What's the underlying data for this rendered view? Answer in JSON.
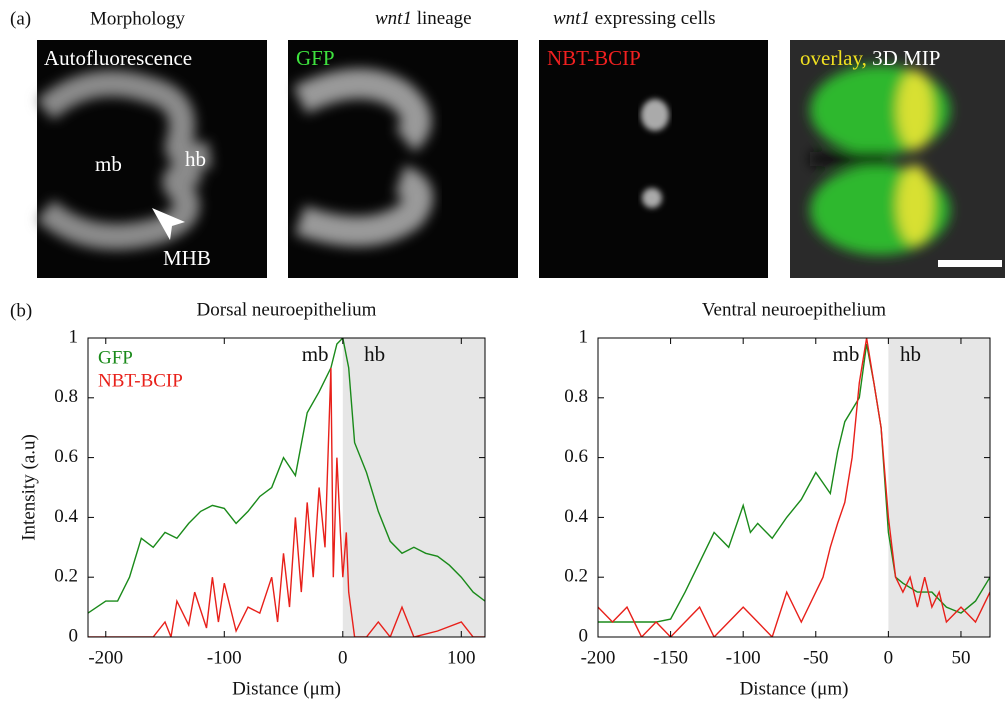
{
  "figure": {
    "label_a": "(a)",
    "label_b": "(b)",
    "panels": [
      {
        "header": "Morphology",
        "caption": "Autofluorescence",
        "marks": [
          "mb",
          "hb",
          "MHB"
        ]
      },
      {
        "header_italic": "wnt1",
        "header": " lineage",
        "caption": "GFP"
      },
      {
        "header_italic": "wnt1",
        "header": " expressing cells",
        "caption": "NBT-BCIP"
      },
      {
        "caption": "overlay,",
        "caption2": " 3D MIP"
      }
    ]
  },
  "chart_data": [
    {
      "type": "line",
      "title": "Dorsal neuroepithelium",
      "x_label": "Distance (μm)",
      "y_label": "Intensity (a.u)",
      "xlim": [
        -215,
        120
      ],
      "ylim": [
        0,
        1
      ],
      "xticks": [
        -200,
        -100,
        0,
        100
      ],
      "yticks": [
        0,
        0.2,
        0.4,
        0.6,
        0.8,
        1
      ],
      "shaded_region": [
        0,
        120
      ],
      "annotations": [
        "mb",
        "hb"
      ],
      "legend": "upper left",
      "series": [
        {
          "name": "GFP",
          "color": "#1a8a1a",
          "x": [
            -215,
            -200,
            -190,
            -180,
            -170,
            -160,
            -150,
            -140,
            -130,
            -120,
            -110,
            -100,
            -90,
            -80,
            -70,
            -60,
            -50,
            -40,
            -30,
            -20,
            -10,
            -5,
            0,
            5,
            10,
            20,
            30,
            40,
            50,
            60,
            70,
            80,
            90,
            100,
            110,
            120
          ],
          "values": [
            0.08,
            0.12,
            0.12,
            0.2,
            0.33,
            0.3,
            0.35,
            0.33,
            0.38,
            0.42,
            0.44,
            0.43,
            0.38,
            0.42,
            0.47,
            0.5,
            0.6,
            0.54,
            0.75,
            0.82,
            0.9,
            0.98,
            1.0,
            0.9,
            0.65,
            0.55,
            0.42,
            0.32,
            0.28,
            0.3,
            0.28,
            0.27,
            0.24,
            0.2,
            0.15,
            0.12
          ]
        },
        {
          "name": "NBT-BCIP",
          "color": "#e8201a",
          "x": [
            -215,
            -200,
            -190,
            -170,
            -160,
            -150,
            -145,
            -140,
            -130,
            -125,
            -115,
            -110,
            -105,
            -100,
            -90,
            -80,
            -70,
            -60,
            -55,
            -50,
            -45,
            -40,
            -35,
            -30,
            -25,
            -20,
            -15,
            -10,
            -8,
            -5,
            -2,
            0,
            3,
            5,
            10,
            20,
            30,
            40,
            50,
            60,
            80,
            100,
            110,
            120
          ],
          "values": [
            0,
            0,
            0,
            0,
            0,
            0.05,
            0,
            0.12,
            0.04,
            0.15,
            0.03,
            0.2,
            0.05,
            0.18,
            0.02,
            0.1,
            0.08,
            0.2,
            0.05,
            0.28,
            0.1,
            0.4,
            0.15,
            0.45,
            0.2,
            0.5,
            0.3,
            0.9,
            0.2,
            0.6,
            0.35,
            0.2,
            0.35,
            0.15,
            0,
            0,
            0.05,
            0,
            0.1,
            0,
            0.02,
            0.05,
            0,
            0
          ]
        }
      ]
    },
    {
      "type": "line",
      "title": "Ventral neuroepithelium",
      "x_label": "Distance (μm)",
      "xlim": [
        -200,
        70
      ],
      "ylim": [
        0,
        1
      ],
      "xticks": [
        -200,
        -150,
        -100,
        -50,
        0,
        50
      ],
      "yticks": [
        0,
        0.2,
        0.4,
        0.6,
        0.8,
        1
      ],
      "shaded_region": [
        0,
        70
      ],
      "annotations": [
        "mb",
        "hb"
      ],
      "series": [
        {
          "color": "#1a8a1a",
          "x": [
            -200,
            -180,
            -170,
            -160,
            -150,
            -140,
            -130,
            -120,
            -110,
            -100,
            -95,
            -90,
            -80,
            -70,
            -60,
            -50,
            -40,
            -35,
            -30,
            -20,
            -15,
            -10,
            -5,
            0,
            5,
            10,
            20,
            30,
            40,
            50,
            60,
            70
          ],
          "values": [
            0.05,
            0.05,
            0.05,
            0.05,
            0.06,
            0.15,
            0.25,
            0.35,
            0.3,
            0.44,
            0.35,
            0.38,
            0.33,
            0.4,
            0.46,
            0.55,
            0.48,
            0.62,
            0.72,
            0.8,
            0.98,
            0.85,
            0.7,
            0.35,
            0.2,
            0.18,
            0.15,
            0.15,
            0.1,
            0.08,
            0.12,
            0.2
          ]
        },
        {
          "color": "#e8201a",
          "x": [
            -200,
            -190,
            -180,
            -170,
            -160,
            -150,
            -140,
            -130,
            -120,
            -110,
            -100,
            -90,
            -80,
            -70,
            -60,
            -50,
            -45,
            -40,
            -35,
            -30,
            -25,
            -20,
            -15,
            -10,
            -5,
            0,
            5,
            10,
            15,
            20,
            25,
            30,
            35,
            40,
            50,
            60,
            70
          ],
          "values": [
            0.1,
            0.05,
            0.1,
            0,
            0.05,
            0,
            0.05,
            0.1,
            0,
            0.05,
            0.1,
            0.05,
            0,
            0.15,
            0.05,
            0.15,
            0.2,
            0.3,
            0.38,
            0.45,
            0.6,
            0.85,
            1.0,
            0.85,
            0.7,
            0.4,
            0.2,
            0.15,
            0.2,
            0.1,
            0.2,
            0.1,
            0.15,
            0.05,
            0.1,
            0.05,
            0.15
          ]
        }
      ]
    }
  ]
}
